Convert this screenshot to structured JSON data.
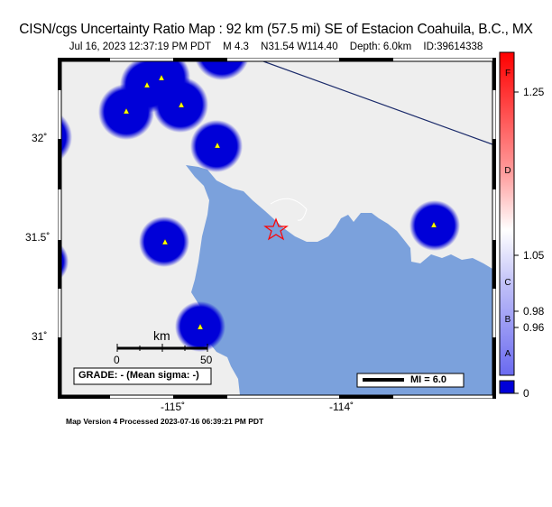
{
  "header": {
    "title": "CISN/cgs Uncertainty Ratio Map : 92 km (57.5 mi) SE of Estacion Coahuila, B.C., MX",
    "date": "Jul 16, 2023 12:37:19 PM PDT",
    "magnitude": "M 4.3",
    "location": "N31.54 W114.40",
    "depth": "Depth: 6.0km",
    "event_id": "ID:39614338"
  },
  "map": {
    "lat_labels": [
      "32˚",
      "31.5˚",
      "31˚"
    ],
    "lon_labels": [
      "-115˚",
      "-114˚"
    ],
    "scale_bar": {
      "unit": "km",
      "start": "0",
      "end": "50"
    },
    "grade": "GRADE: - (Mean sigma: -)",
    "mi_legend": "MI = 6.0",
    "colors": {
      "land": "#eeeeee",
      "water": "#7ba1dc",
      "station_halo": "#0000d8",
      "station": "#ffff00",
      "epicenter": "#ff0000"
    }
  },
  "colorbar": {
    "labels": [
      "1.25",
      "1.05",
      "0.98",
      "0.96",
      "0"
    ],
    "grades": [
      "F",
      "D",
      "C",
      "B",
      "A"
    ]
  },
  "footer": "Map Version 4 Processed 2023-07-16 06:39:21 PM PDT"
}
